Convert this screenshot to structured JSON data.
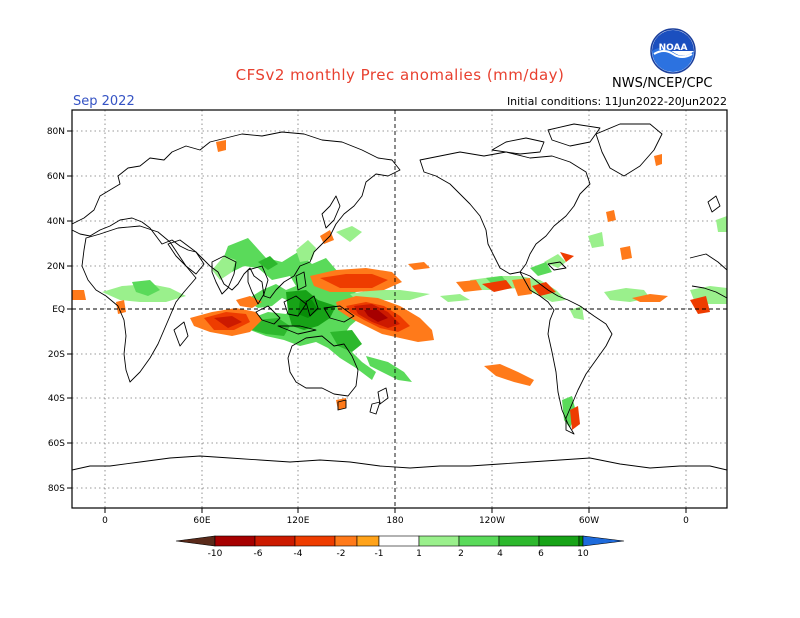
{
  "header": {
    "title": "CFSv2 monthly Prec anomalies (mm/day)",
    "period": "Sep 2022",
    "initial_conditions": "Initial conditions: 11Jun2022-20Jun2022",
    "agency": "NWS/NCEP/CPC",
    "logo_text": "NOAA",
    "logo_icon": "noaa-logo-icon"
  },
  "axes": {
    "lat_labels": [
      "80N",
      "60N",
      "40N",
      "20N",
      "EQ",
      "20S",
      "40S",
      "60S",
      "80S"
    ],
    "lon_labels": [
      "0",
      "60E",
      "120E",
      "180",
      "120W",
      "60W",
      "0"
    ]
  },
  "legend": {
    "tick_labels": [
      "-10",
      "-6",
      "-4",
      "-2",
      "-1",
      "1",
      "2",
      "4",
      "6",
      "10"
    ],
    "colors": [
      "#5a2a1a",
      "#a60000",
      "#cc1a00",
      "#ee3c00",
      "#ff7a1a",
      "#ffa31a",
      "#ffffff",
      "#9af08c",
      "#5ada5a",
      "#2db82d",
      "#17a317",
      "#078c07",
      "#1e6bdc"
    ]
  }
}
